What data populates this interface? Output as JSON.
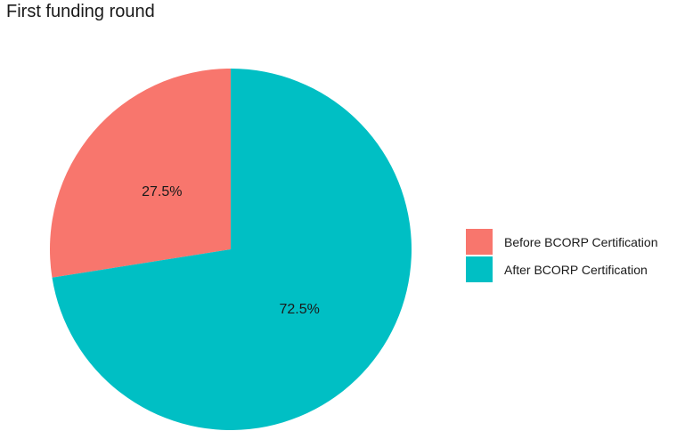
{
  "chart_data": {
    "type": "pie",
    "title": "First funding round",
    "start_angle_deg": 0,
    "direction": "counterclockwise",
    "slices": [
      {
        "label": "Before BCORP Certification",
        "value": 27.5,
        "value_label": "27.5%",
        "color": "#F8766D"
      },
      {
        "label": "After BCORP Certification",
        "value": 72.5,
        "value_label": "72.5%",
        "color": "#00BFC4"
      }
    ],
    "legend_position": "right"
  }
}
